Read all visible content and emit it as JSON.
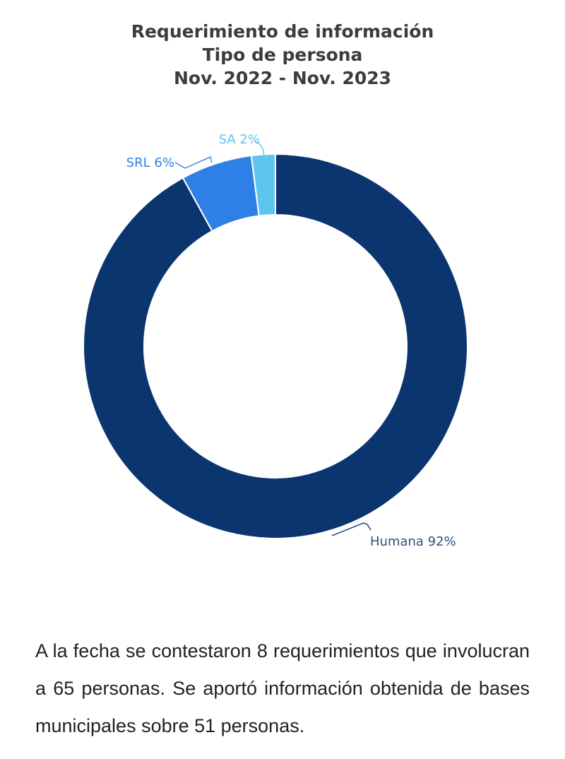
{
  "chart_data": {
    "type": "pie",
    "title": [
      "Requerimiento de información",
      "Tipo de persona",
      "Nov. 2022 - Nov. 2023"
    ],
    "slices": [
      {
        "name": "Humana",
        "value": 92,
        "label": "Humana 92%",
        "color": "#0b356f"
      },
      {
        "name": "SRL",
        "value": 6,
        "label": "SRL 6%",
        "color": "#2f80e6"
      },
      {
        "name": "SA",
        "value": 2,
        "label": "SA 2%",
        "color": "#5ec5ec"
      }
    ],
    "donut": true
  },
  "paragraph": "A la fecha se contestaron 8 requerimientos que involucran a 65 personas. Se aportó información obtenida de bases municipales sobre 51 personas."
}
